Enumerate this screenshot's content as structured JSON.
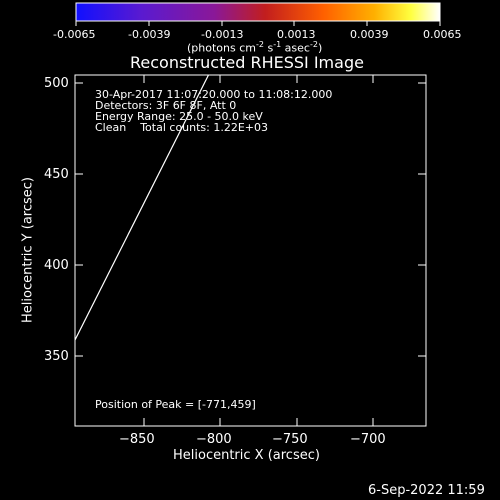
{
  "colorbar": {
    "ticks": [
      "-0.0065",
      "-0.0039",
      "-0.0013",
      "0.0013",
      "0.0039",
      "0.0065"
    ],
    "units_prefix": "(photons cm",
    "units_exp1": "-2",
    "units_mid1": " s",
    "units_exp2": "-1",
    "units_mid2": " asec",
    "units_exp3": "-2",
    "units_suffix": ")",
    "colors": [
      "#1010ff",
      "#5a1ad0",
      "#8a1898",
      "#c21e1e",
      "#ff6000",
      "#ffb000",
      "#ffff40",
      "#ffffff"
    ]
  },
  "plot": {
    "title": "Reconstructed RHESSI Image",
    "xlabel": "Heliocentric X (arcsec)",
    "ylabel": "Heliocentric Y (arcsec)",
    "xticks": [
      "−850",
      "−800",
      "−750",
      "−700"
    ],
    "yticks": [
      "500",
      "450",
      "400",
      "350"
    ],
    "info_lines": [
      "30-Apr-2017 11:07:20.000 to 11:08:12.000",
      "Detectors: 3F 6F 8F, Att 0",
      "Energy Range: 25.0 - 50.0 keV",
      "Clean    Total counts: 1.22E+03"
    ],
    "peak_label": "Position of Peak = [-771,459]"
  },
  "footer": {
    "timestamp": "6-Sep-2022 11:59"
  }
}
